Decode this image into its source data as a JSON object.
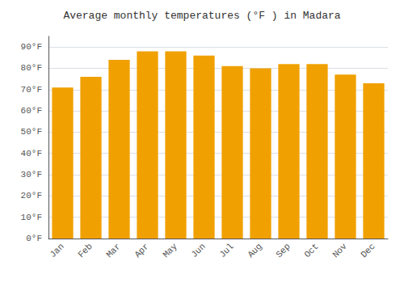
{
  "chart_data": {
    "type": "bar",
    "title": "Average monthly temperatures (°F ) in Madara",
    "categories": [
      "Jan",
      "Feb",
      "Mar",
      "Apr",
      "May",
      "Jun",
      "Jul",
      "Aug",
      "Sep",
      "Oct",
      "Nov",
      "Dec"
    ],
    "values": [
      71,
      76,
      84,
      88,
      88,
      86,
      81,
      80,
      82,
      82,
      77,
      73
    ],
    "color": "#F0A000",
    "ylim": [
      0,
      95
    ],
    "yticks": [
      {
        "value": 0,
        "label": "0°F"
      },
      {
        "value": 10,
        "label": "10°F"
      },
      {
        "value": 20,
        "label": "20°F"
      },
      {
        "value": 30,
        "label": "30°F"
      },
      {
        "value": 40,
        "label": "40°F"
      },
      {
        "value": 50,
        "label": "50°F"
      },
      {
        "value": 60,
        "label": "60°F"
      },
      {
        "value": 70,
        "label": "70°F"
      },
      {
        "value": 80,
        "label": "80°F"
      },
      {
        "value": 90,
        "label": "90°F"
      }
    ],
    "grid": true
  }
}
